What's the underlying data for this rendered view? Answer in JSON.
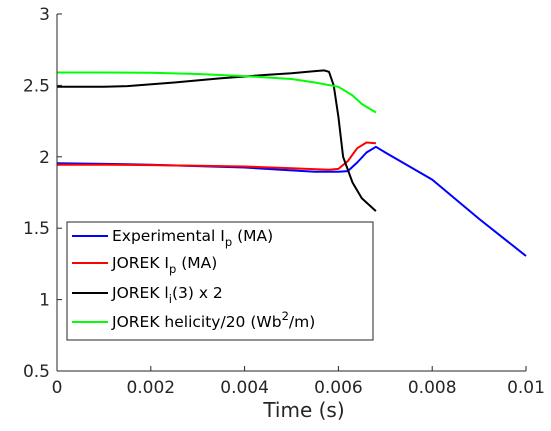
{
  "chart_data": {
    "type": "line",
    "title": "",
    "xlabel": "Time (s)",
    "ylabel": "",
    "xlim": [
      0,
      0.01
    ],
    "ylim": [
      0.5,
      3
    ],
    "grid": false,
    "legend_position": "bottom-left",
    "x_ticks": [
      {
        "value": 0,
        "label": "0"
      },
      {
        "value": 0.002,
        "label": "0.002"
      },
      {
        "value": 0.004,
        "label": "0.004"
      },
      {
        "value": 0.006,
        "label": "0.006"
      },
      {
        "value": 0.008,
        "label": "0.008"
      },
      {
        "value": 0.01,
        "label": "0.01"
      }
    ],
    "y_ticks": [
      {
        "value": 0.5,
        "label": "0.5"
      },
      {
        "value": 1,
        "label": "1"
      },
      {
        "value": 1.5,
        "label": "1.5"
      },
      {
        "value": 2,
        "label": "2"
      },
      {
        "value": 2.5,
        "label": "2.5"
      },
      {
        "value": 3,
        "label": "3"
      }
    ],
    "series": [
      {
        "name": "Experimental I_p (MA)",
        "legend": {
          "main": "Experimental I",
          "sub": "p",
          "tail": " (MA)"
        },
        "color": "#0000ff",
        "points": [
          [
            0,
            1.955
          ],
          [
            0.001,
            1.95
          ],
          [
            0.002,
            1.945
          ],
          [
            0.003,
            1.935
          ],
          [
            0.004,
            1.925
          ],
          [
            0.005,
            1.905
          ],
          [
            0.0055,
            1.895
          ],
          [
            0.006,
            1.895
          ],
          [
            0.0062,
            1.9
          ],
          [
            0.0064,
            1.96
          ],
          [
            0.0066,
            2.03
          ],
          [
            0.0068,
            2.07
          ],
          [
            0.007,
            2.03
          ],
          [
            0.008,
            1.84
          ],
          [
            0.009,
            1.565
          ],
          [
            0.01,
            1.305
          ]
        ]
      },
      {
        "name": "JOREK I_p (MA)",
        "legend": {
          "main": "JOREK I",
          "sub": "p",
          "tail": " (MA)"
        },
        "color": "#ff0000",
        "points": [
          [
            0,
            1.945
          ],
          [
            0.001,
            1.945
          ],
          [
            0.002,
            1.942
          ],
          [
            0.003,
            1.938
          ],
          [
            0.004,
            1.932
          ],
          [
            0.005,
            1.92
          ],
          [
            0.0058,
            1.91
          ],
          [
            0.006,
            1.915
          ],
          [
            0.0062,
            1.97
          ],
          [
            0.0064,
            2.06
          ],
          [
            0.0066,
            2.1
          ],
          [
            0.0068,
            2.095
          ]
        ]
      },
      {
        "name": "JOREK l_i(3) x 2",
        "legend": {
          "main": "JOREK l",
          "sub": "i",
          "tail": "(3) x 2"
        },
        "color": "#000000",
        "points": [
          [
            0,
            2.49
          ],
          [
            0.001,
            2.49
          ],
          [
            0.0015,
            2.495
          ],
          [
            0.0025,
            2.52
          ],
          [
            0.0035,
            2.55
          ],
          [
            0.0045,
            2.575
          ],
          [
            0.005,
            2.585
          ],
          [
            0.0055,
            2.6
          ],
          [
            0.0057,
            2.605
          ],
          [
            0.0058,
            2.595
          ],
          [
            0.0059,
            2.5
          ],
          [
            0.006,
            2.28
          ],
          [
            0.0061,
            2.0
          ],
          [
            0.0063,
            1.82
          ],
          [
            0.0065,
            1.71
          ],
          [
            0.0068,
            1.62
          ]
        ]
      },
      {
        "name": "JOREK helicity/20 (Wb^2/m)",
        "legend": {
          "main": "JOREK helicity/20 (Wb",
          "sup": "2",
          "tail": "/m)"
        },
        "color": "#00ff00",
        "points": [
          [
            0,
            2.59
          ],
          [
            0.001,
            2.59
          ],
          [
            0.002,
            2.588
          ],
          [
            0.003,
            2.58
          ],
          [
            0.004,
            2.565
          ],
          [
            0.005,
            2.545
          ],
          [
            0.0055,
            2.52
          ],
          [
            0.006,
            2.49
          ],
          [
            0.0063,
            2.43
          ],
          [
            0.0065,
            2.37
          ],
          [
            0.0068,
            2.31
          ]
        ]
      }
    ]
  }
}
